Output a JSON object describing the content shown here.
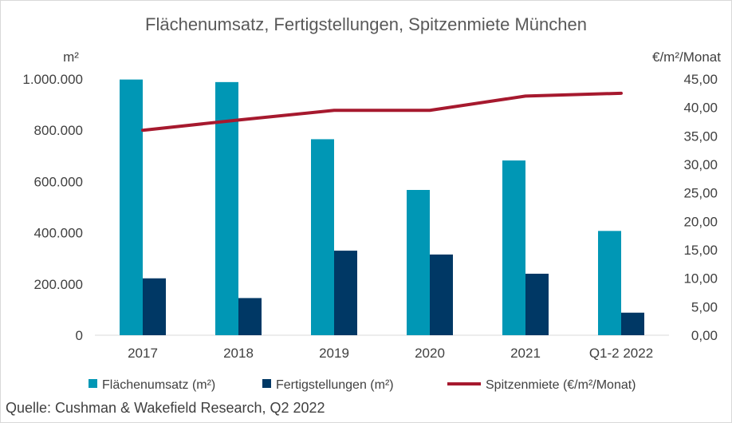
{
  "chart_data": {
    "type": "bar",
    "title": "Flächenumsatz, Fertigstellungen, Spitzenmiete München",
    "categories": [
      "2017",
      "2018",
      "2019",
      "2020",
      "2021",
      "Q1-2 2022"
    ],
    "series": [
      {
        "name": "Flächenumsatz (m²)",
        "type": "bar",
        "axis": "left",
        "color": "#0097B5",
        "values": [
          998000,
          988000,
          765000,
          567000,
          682000,
          407000
        ]
      },
      {
        "name": "Fertigstellungen (m²)",
        "type": "bar",
        "axis": "left",
        "color": "#003865",
        "values": [
          222000,
          145000,
          330000,
          315000,
          240000,
          88000
        ]
      },
      {
        "name": "Spitzenmiete (€/m²/Monat)",
        "type": "line",
        "axis": "right",
        "color": "#A6192E",
        "values": [
          36.0,
          37.8,
          39.5,
          39.5,
          42.0,
          42.5
        ]
      }
    ],
    "left_axis": {
      "unit": "m²",
      "ylim": [
        0,
        1000000
      ],
      "ticks": [
        "0",
        "200.000",
        "400.000",
        "600.000",
        "800.000",
        "1.000.000"
      ]
    },
    "right_axis": {
      "unit": "€/m²/Monat",
      "ylim": [
        0,
        45
      ],
      "ticks": [
        "0,00",
        "5,00",
        "10,00",
        "15,00",
        "20,00",
        "25,00",
        "30,00",
        "35,00",
        "40,00",
        "45,00"
      ]
    },
    "legend_position": "bottom",
    "grid": false
  },
  "source": "Quelle: Cushman & Wakefield Research, Q2 2022"
}
